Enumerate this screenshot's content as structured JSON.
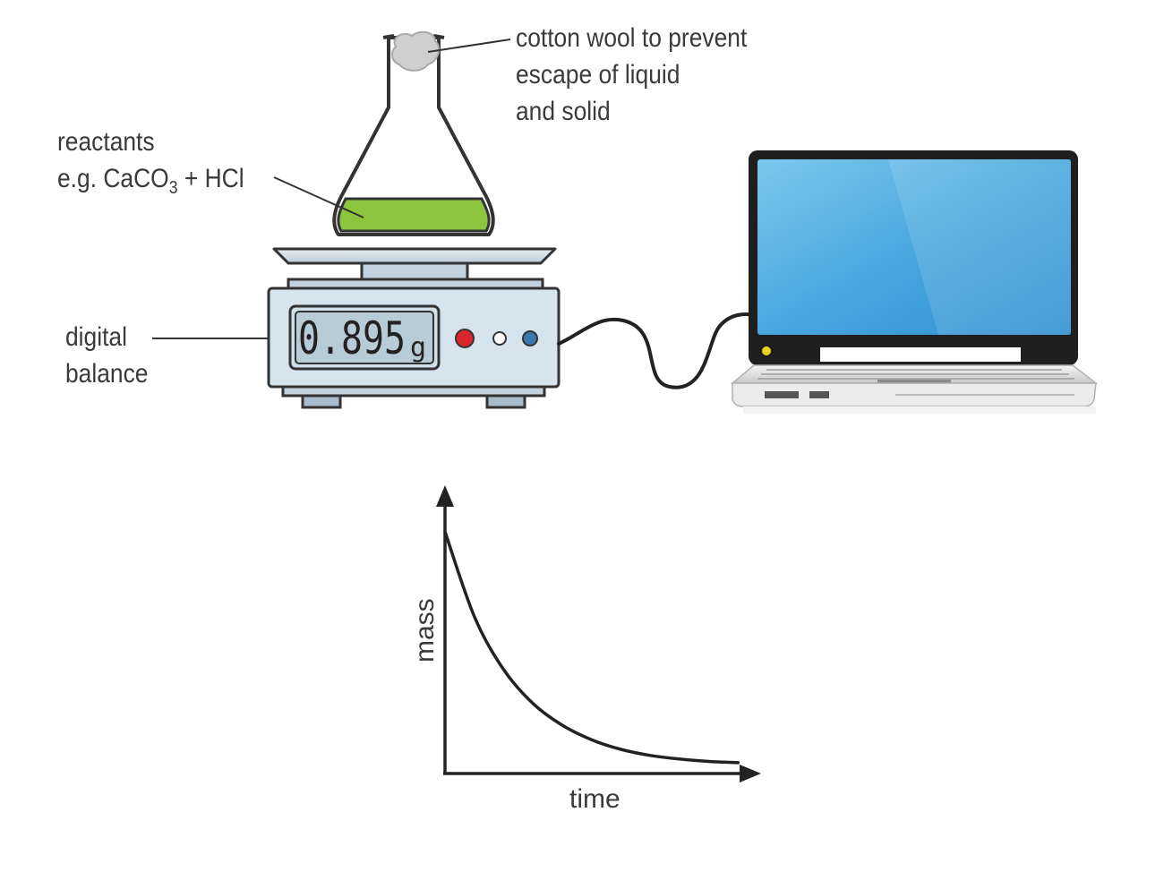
{
  "labels": {
    "cotton_wool": [
      "cotton wool to prevent",
      "escape of liquid",
      "and solid"
    ],
    "reactants": {
      "line1": "reactants",
      "line2_prefix": "e.g. CaCO",
      "line2_sub": "3",
      "line2_suffix": " + HCl"
    },
    "digital_balance": [
      "digital",
      "balance"
    ]
  },
  "balance": {
    "reading": "0.895",
    "unit": "g"
  },
  "graph": {
    "ylabel": "mass",
    "xlabel": "time"
  },
  "colors": {
    "liquid": "#8cc63f",
    "balance_body": "#d6e4ee",
    "screen": "#4aa8df",
    "red_button": "#d9262c",
    "blue_button": "#3a7ab0"
  },
  "chart_data": {
    "type": "line",
    "title": "",
    "xlabel": "time",
    "ylabel": "mass",
    "series": [
      {
        "name": "mass",
        "x": [
          0,
          1,
          2,
          3,
          4,
          5,
          6,
          7,
          8,
          9,
          10
        ],
        "values": [
          10,
          6.5,
          4.3,
          2.9,
          2.0,
          1.4,
          1.0,
          0.75,
          0.6,
          0.5,
          0.45
        ]
      }
    ],
    "xlim": [
      0,
      11
    ],
    "ylim": [
      0,
      12
    ],
    "grid": false,
    "tick_labels": false
  }
}
